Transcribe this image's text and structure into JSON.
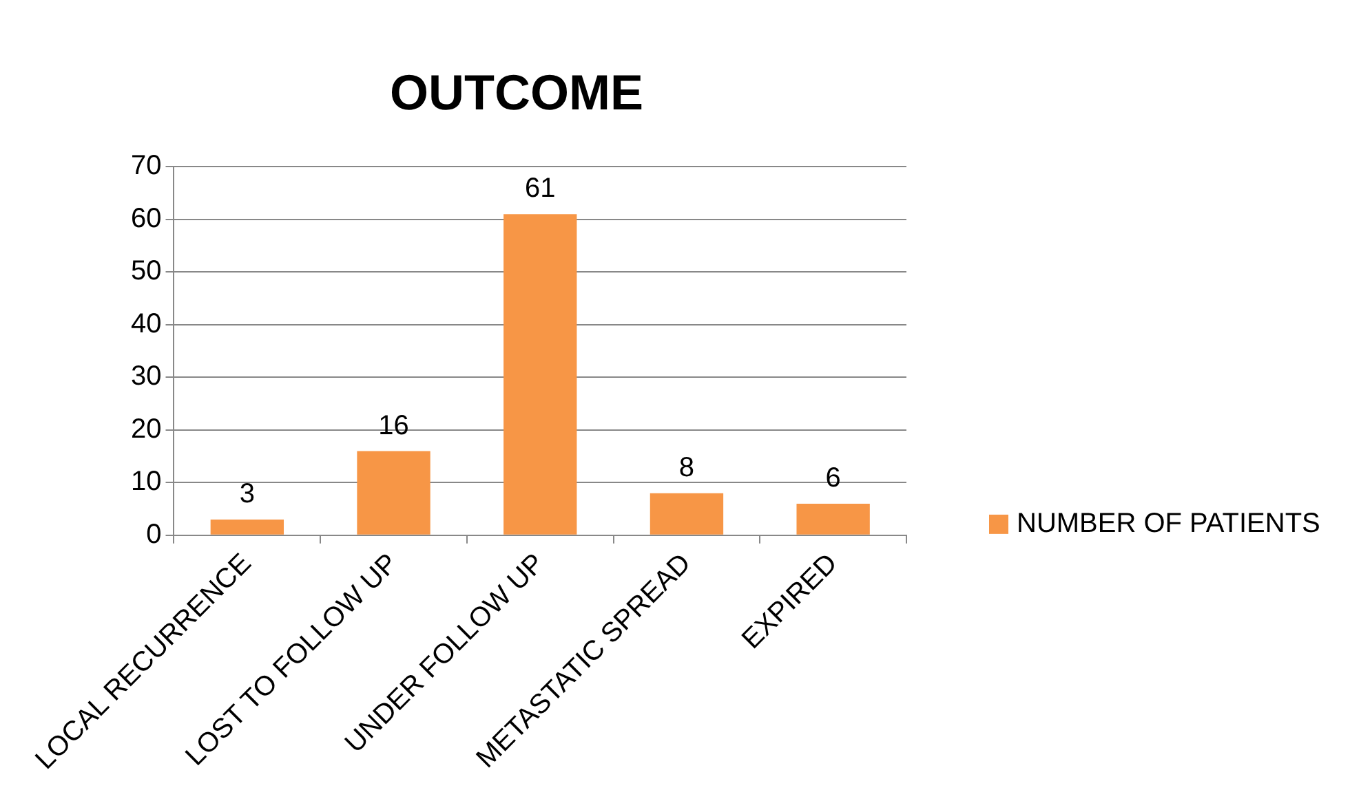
{
  "chart_data": {
    "type": "bar",
    "title": "OUTCOME",
    "categories": [
      "LOCAL RECURRENCE",
      "LOST TO FOLLOW UP",
      "UNDER FOLLOW UP",
      "METASTATIC SPREAD",
      "EXPIRED"
    ],
    "series": [
      {
        "name": "NUMBER OF PATIENTS",
        "color": "#f79646",
        "values": [
          3,
          16,
          61,
          8,
          6
        ]
      }
    ],
    "ylim": [
      0,
      70
    ],
    "yticks": [
      0,
      10,
      20,
      30,
      40,
      50,
      60,
      70
    ],
    "grid": "y",
    "legend": "right",
    "data_labels": true
  }
}
